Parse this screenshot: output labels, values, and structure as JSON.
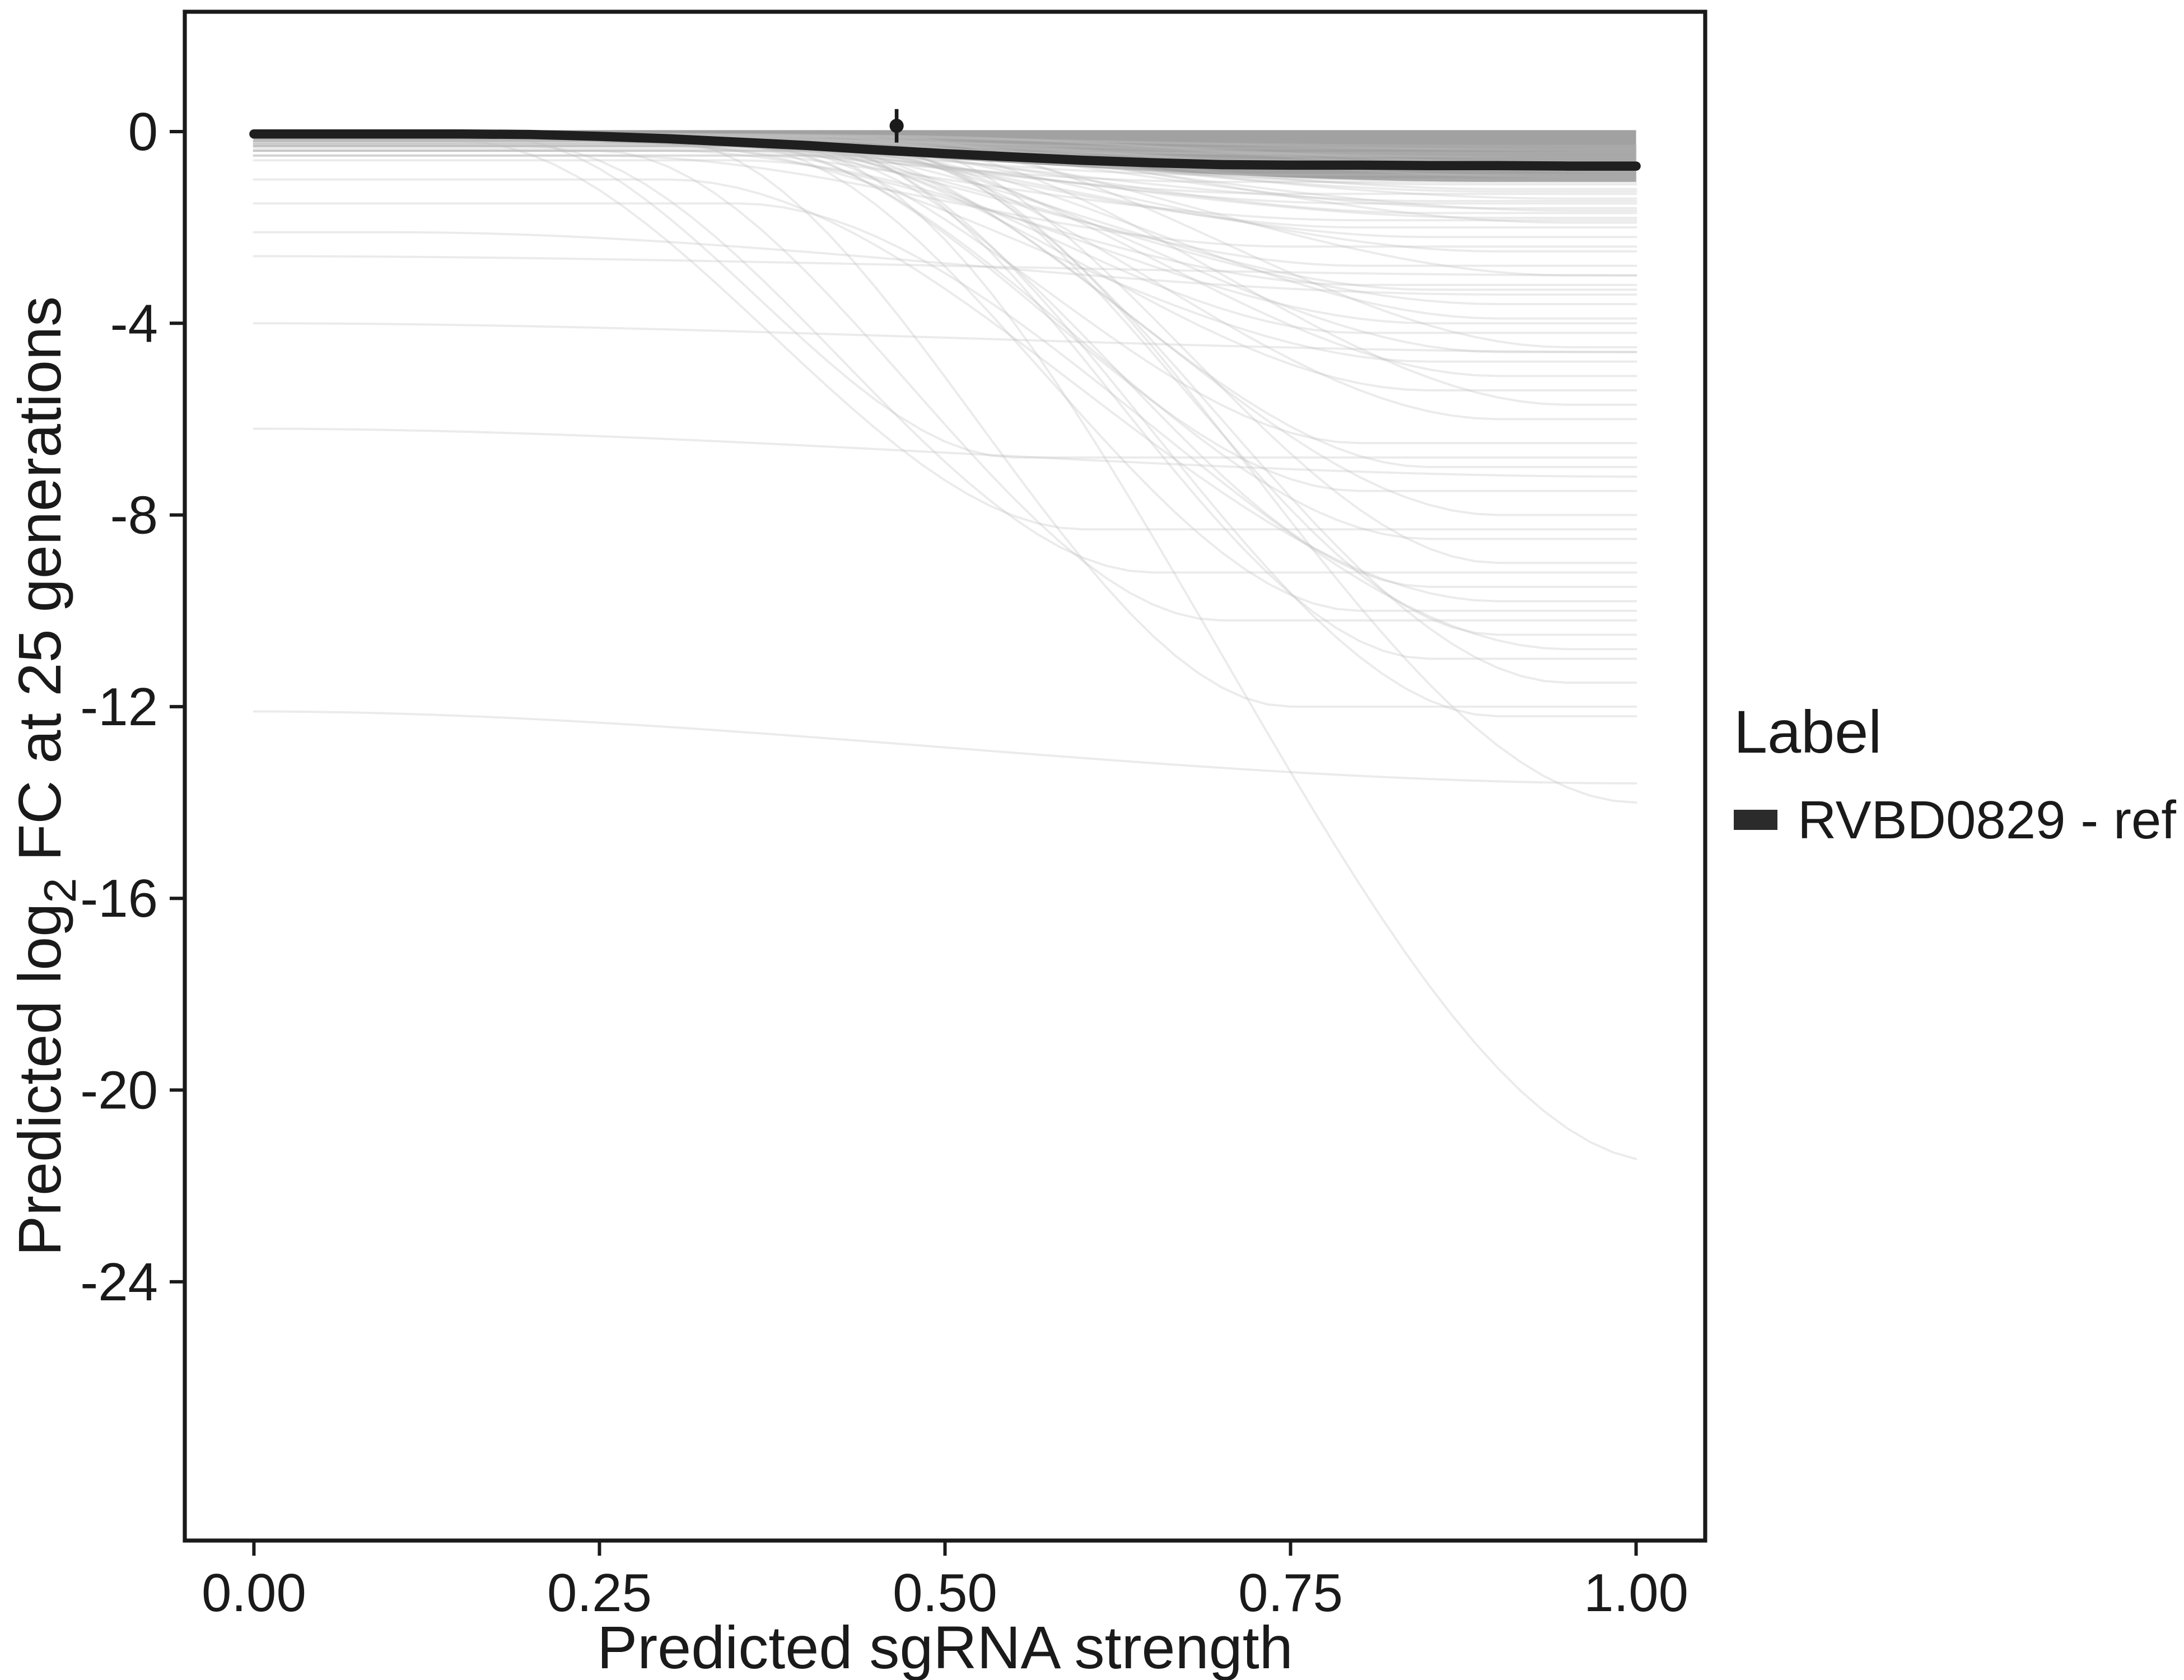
{
  "figure": {
    "background": "#ffffff",
    "axis_color": "#1a1a1a",
    "text_color": "#1a1a1a"
  },
  "chart_data": {
    "type": "line",
    "title": "",
    "xlabel": "Predicted sgRNA strength",
    "ylabel": {
      "pre": "Predicted  log",
      "sub": "2",
      "post": " FC at 25 generations"
    },
    "xlim": [
      -0.05,
      1.05
    ],
    "ylim": [
      -29.4,
      2.5
    ],
    "grid": false,
    "x_axis": {
      "ticks": [
        {
          "v": 0.0,
          "label": "0.00"
        },
        {
          "v": 0.25,
          "label": "0.25"
        },
        {
          "v": 0.5,
          "label": "0.50"
        },
        {
          "v": 0.75,
          "label": "0.75"
        },
        {
          "v": 1.0,
          "label": "1.00"
        }
      ]
    },
    "y_axis": {
      "ticks": [
        {
          "v": 0,
          "label": "0"
        },
        {
          "v": -4,
          "label": "-4"
        },
        {
          "v": -8,
          "label": "-8"
        },
        {
          "v": -12,
          "label": "-12"
        },
        {
          "v": -16,
          "label": "-16"
        },
        {
          "v": -20,
          "label": "-20"
        },
        {
          "v": -24,
          "label": "-24"
        }
      ]
    },
    "legend": {
      "title": "Label",
      "position": "right",
      "entries": [
        {
          "label": "RVBD0829 - ref",
          "color": "#2b2b2b"
        }
      ]
    },
    "reference_series": {
      "name": "RVBD0829 - ref",
      "color": "#1f1f1f",
      "stroke_width": 5.5,
      "points": [
        [
          0.0,
          -0.05
        ],
        [
          0.05,
          -0.05
        ],
        [
          0.1,
          -0.05
        ],
        [
          0.15,
          -0.05
        ],
        [
          0.2,
          -0.06
        ],
        [
          0.25,
          -0.1
        ],
        [
          0.3,
          -0.15
        ],
        [
          0.35,
          -0.22
        ],
        [
          0.4,
          -0.29
        ],
        [
          0.45,
          -0.38
        ],
        [
          0.5,
          -0.46
        ],
        [
          0.55,
          -0.53
        ],
        [
          0.6,
          -0.6
        ],
        [
          0.65,
          -0.65
        ],
        [
          0.7,
          -0.69
        ],
        [
          0.75,
          -0.7
        ],
        [
          0.8,
          -0.7
        ],
        [
          0.85,
          -0.71
        ],
        [
          0.9,
          -0.71
        ],
        [
          0.95,
          -0.72
        ],
        [
          1.0,
          -0.72
        ]
      ]
    },
    "mean_point": {
      "x": 0.465,
      "y": 0.12,
      "error": 0.35,
      "color": "#1a1a1a"
    },
    "density_band": {
      "color": "#9c9c9c",
      "opacity": 0.95,
      "top": 0.03,
      "bottom_curve": [
        -0.18,
        -1.05,
        0.15,
        0.9
      ]
    },
    "background_curves": {
      "color": "#bdbdbd",
      "opacity": 0.3,
      "stroke_width": 1.3,
      "params": [
        [
          -0.05,
          -0.35,
          0.15,
          0.75
        ],
        [
          -0.06,
          -0.5,
          0.2,
          0.8
        ],
        [
          -0.08,
          -0.65,
          0.25,
          0.85
        ],
        [
          -0.05,
          -0.8,
          0.3,
          0.9
        ],
        [
          -0.1,
          -0.9,
          0.2,
          0.7
        ],
        [
          -0.07,
          -1.0,
          0.25,
          0.8
        ],
        [
          -0.12,
          -1.1,
          0.3,
          0.85
        ],
        [
          -0.06,
          -1.2,
          0.35,
          0.9
        ],
        [
          -0.09,
          -1.3,
          0.2,
          0.75
        ],
        [
          -0.05,
          -1.4,
          0.3,
          0.95
        ],
        [
          -0.15,
          -1.5,
          0.25,
          0.8
        ],
        [
          -0.1,
          -1.6,
          0.35,
          0.9
        ],
        [
          -0.08,
          -1.7,
          0.3,
          0.85
        ],
        [
          -0.2,
          -1.8,
          0.25,
          0.9
        ],
        [
          -0.1,
          -1.9,
          0.4,
          0.95
        ],
        [
          -0.12,
          -2.0,
          0.3,
          0.8
        ],
        [
          -0.05,
          -0.45,
          0.1,
          0.6
        ],
        [
          -0.07,
          -0.6,
          0.15,
          0.65
        ],
        [
          -0.1,
          -0.75,
          0.2,
          0.9
        ],
        [
          -0.06,
          -0.95,
          0.35,
          0.95
        ],
        [
          -0.08,
          -1.05,
          0.15,
          0.7
        ],
        [
          -0.13,
          -1.25,
          0.3,
          0.9
        ],
        [
          -0.09,
          -1.45,
          0.25,
          0.85
        ],
        [
          -0.11,
          -1.65,
          0.35,
          0.95
        ],
        [
          -0.14,
          -1.85,
          0.2,
          0.8
        ],
        [
          -0.05,
          -0.3,
          0.2,
          0.9
        ],
        [
          -0.06,
          -0.4,
          0.3,
          1.0
        ],
        [
          -0.1,
          -0.55,
          0.25,
          0.95
        ],
        [
          -0.07,
          -0.7,
          0.4,
          1.0
        ],
        [
          -0.09,
          -0.85,
          0.45,
          1.0
        ],
        [
          -0.1,
          -2.2,
          0.3,
          0.85
        ],
        [
          -0.15,
          -2.5,
          0.35,
          0.9
        ],
        [
          -0.2,
          -2.8,
          0.3,
          0.8
        ],
        [
          -0.1,
          -3.0,
          0.4,
          0.95
        ],
        [
          -0.25,
          -3.3,
          0.35,
          0.85
        ],
        [
          -0.15,
          -3.6,
          0.3,
          0.9
        ],
        [
          -0.3,
          -3.9,
          0.4,
          0.9
        ],
        [
          -0.2,
          -4.2,
          0.35,
          0.8
        ],
        [
          -0.1,
          -4.5,
          0.45,
          0.95
        ],
        [
          -0.3,
          -4.8,
          0.3,
          0.85
        ],
        [
          -0.2,
          -5.1,
          0.4,
          0.9
        ],
        [
          -0.15,
          -5.4,
          0.35,
          0.85
        ],
        [
          -0.25,
          -5.7,
          0.45,
          0.95
        ],
        [
          -0.2,
          -6.0,
          0.4,
          0.9
        ],
        [
          -0.5,
          -2.4,
          0.25,
          0.75
        ],
        [
          -0.4,
          -3.2,
          0.3,
          0.8
        ],
        [
          -0.6,
          -4.0,
          0.35,
          0.85
        ],
        [
          -0.35,
          -4.6,
          0.4,
          0.9
        ],
        [
          -0.2,
          -6.5,
          0.35,
          0.8
        ],
        [
          -0.3,
          -7.0,
          0.4,
          0.85
        ],
        [
          -0.25,
          -7.5,
          0.35,
          0.8
        ],
        [
          -0.4,
          -8.0,
          0.4,
          0.9
        ],
        [
          -0.3,
          -8.5,
          0.35,
          0.85
        ],
        [
          -0.2,
          -9.0,
          0.45,
          0.9
        ],
        [
          -0.5,
          -9.5,
          0.4,
          0.85
        ],
        [
          -0.3,
          -10.0,
          0.35,
          0.8
        ],
        [
          -0.4,
          -10.5,
          0.45,
          0.9
        ],
        [
          -0.25,
          -11.0,
          0.4,
          0.85
        ],
        [
          -0.5,
          -11.5,
          0.45,
          0.95
        ],
        [
          -0.3,
          -12.2,
          0.4,
          0.9
        ],
        [
          -0.2,
          -8.3,
          0.15,
          0.6
        ],
        [
          -0.3,
          -9.2,
          0.2,
          0.65
        ],
        [
          -0.15,
          -6.8,
          0.18,
          0.55
        ],
        [
          -0.4,
          -10.2,
          0.25,
          0.7
        ],
        [
          -0.2,
          -12.0,
          0.3,
          0.75
        ],
        [
          -12.1,
          -13.6,
          0.0,
          1.0
        ],
        [
          -6.2,
          -7.2,
          0.0,
          1.0
        ],
        [
          -4.0,
          -4.6,
          0.0,
          1.0
        ],
        [
          -2.1,
          -3.4,
          0.1,
          0.9
        ],
        [
          -2.6,
          -3.0,
          0.0,
          1.0
        ],
        [
          -0.3,
          -21.5,
          0.38,
          1.02
        ],
        [
          -0.4,
          -14.0,
          0.45,
          1.0
        ],
        [
          -1.0,
          -9.8,
          0.3,
          0.9
        ],
        [
          -1.5,
          -10.8,
          0.35,
          0.95
        ]
      ]
    }
  }
}
